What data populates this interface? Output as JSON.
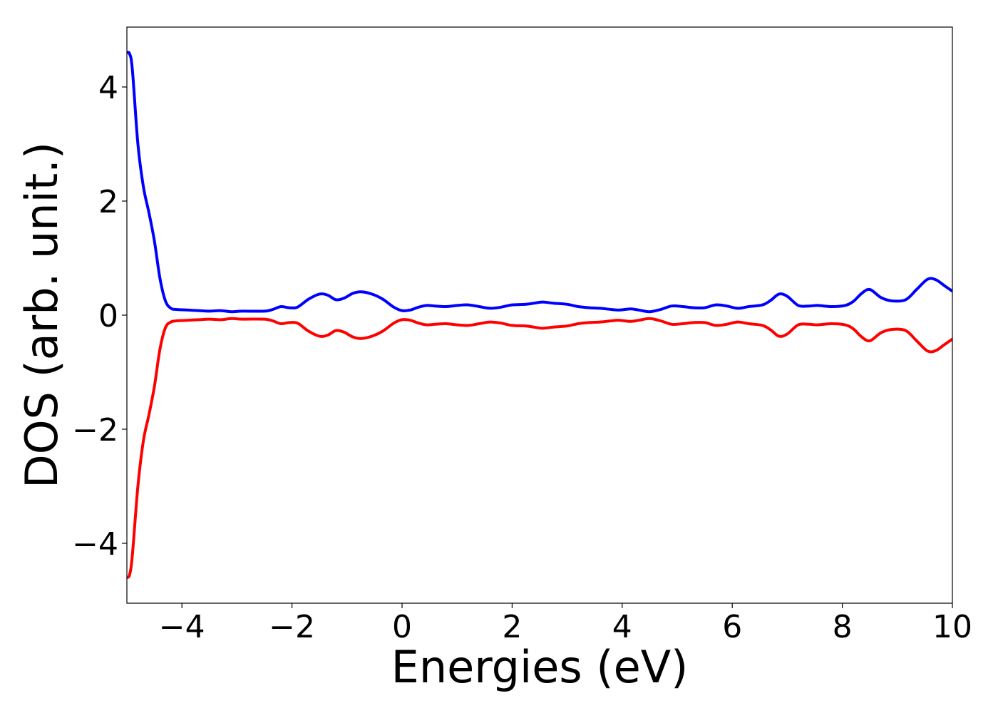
{
  "chart_data": {
    "type": "line",
    "title": "",
    "xlabel": "Energies (eV)",
    "ylabel": "DOS (arb. unit.)",
    "xlim": [
      -5,
      10
    ],
    "ylim": [
      -5.05,
      5.05
    ],
    "grid": false,
    "legend": "none",
    "x_ticks": [
      {
        "value": -4,
        "label": "−4"
      },
      {
        "value": -2,
        "label": "−2"
      },
      {
        "value": 0,
        "label": "0"
      },
      {
        "value": 2,
        "label": "2"
      },
      {
        "value": 4,
        "label": "4"
      },
      {
        "value": 6,
        "label": "6"
      },
      {
        "value": 8,
        "label": "8"
      },
      {
        "value": 10,
        "label": "10"
      }
    ],
    "y_ticks": [
      {
        "value": -4,
        "label": "−4"
      },
      {
        "value": -2,
        "label": "−2"
      },
      {
        "value": 0,
        "label": "0"
      },
      {
        "value": 2,
        "label": "2"
      },
      {
        "value": 4,
        "label": "4"
      }
    ],
    "series": [
      {
        "color": "#0000ff",
        "points": [
          [
            -5.0,
            4.6
          ],
          [
            -4.95,
            4.58
          ],
          [
            -4.9,
            4.3
          ],
          [
            -4.8,
            3.0
          ],
          [
            -4.7,
            2.25
          ],
          [
            -4.6,
            1.8
          ],
          [
            -4.5,
            1.3
          ],
          [
            -4.4,
            0.65
          ],
          [
            -4.3,
            0.25
          ],
          [
            -4.2,
            0.12
          ],
          [
            -4.1,
            0.1
          ],
          [
            -3.9,
            0.09
          ],
          [
            -3.7,
            0.08
          ],
          [
            -3.5,
            0.07
          ],
          [
            -3.3,
            0.08
          ],
          [
            -3.1,
            0.06
          ],
          [
            -2.9,
            0.07
          ],
          [
            -2.5,
            0.07
          ],
          [
            -2.35,
            0.1
          ],
          [
            -2.2,
            0.15
          ],
          [
            -2.05,
            0.13
          ],
          [
            -1.9,
            0.14
          ],
          [
            -1.7,
            0.28
          ],
          [
            -1.5,
            0.37
          ],
          [
            -1.35,
            0.35
          ],
          [
            -1.2,
            0.27
          ],
          [
            -1.05,
            0.3
          ],
          [
            -0.9,
            0.38
          ],
          [
            -0.75,
            0.41
          ],
          [
            -0.55,
            0.37
          ],
          [
            -0.35,
            0.28
          ],
          [
            -0.15,
            0.14
          ],
          [
            0.0,
            0.08
          ],
          [
            0.15,
            0.09
          ],
          [
            0.3,
            0.14
          ],
          [
            0.45,
            0.17
          ],
          [
            0.6,
            0.16
          ],
          [
            0.8,
            0.15
          ],
          [
            1.0,
            0.17
          ],
          [
            1.2,
            0.18
          ],
          [
            1.4,
            0.15
          ],
          [
            1.6,
            0.12
          ],
          [
            1.8,
            0.14
          ],
          [
            2.0,
            0.18
          ],
          [
            2.25,
            0.19
          ],
          [
            2.4,
            0.21
          ],
          [
            2.55,
            0.23
          ],
          [
            2.75,
            0.21
          ],
          [
            3.0,
            0.19
          ],
          [
            3.2,
            0.15
          ],
          [
            3.4,
            0.13
          ],
          [
            3.6,
            0.12
          ],
          [
            3.8,
            0.1
          ],
          [
            3.95,
            0.09
          ],
          [
            4.15,
            0.11
          ],
          [
            4.3,
            0.09
          ],
          [
            4.5,
            0.06
          ],
          [
            4.7,
            0.1
          ],
          [
            4.9,
            0.16
          ],
          [
            5.1,
            0.15
          ],
          [
            5.3,
            0.13
          ],
          [
            5.5,
            0.13
          ],
          [
            5.7,
            0.18
          ],
          [
            5.9,
            0.16
          ],
          [
            6.1,
            0.12
          ],
          [
            6.3,
            0.15
          ],
          [
            6.55,
            0.18
          ],
          [
            6.7,
            0.26
          ],
          [
            6.85,
            0.37
          ],
          [
            7.0,
            0.33
          ],
          [
            7.2,
            0.17
          ],
          [
            7.4,
            0.16
          ],
          [
            7.55,
            0.17
          ],
          [
            7.8,
            0.15
          ],
          [
            8.05,
            0.17
          ],
          [
            8.2,
            0.24
          ],
          [
            8.35,
            0.38
          ],
          [
            8.5,
            0.45
          ],
          [
            8.7,
            0.31
          ],
          [
            8.9,
            0.25
          ],
          [
            9.15,
            0.27
          ],
          [
            9.35,
            0.45
          ],
          [
            9.55,
            0.63
          ],
          [
            9.7,
            0.62
          ],
          [
            9.85,
            0.52
          ],
          [
            10.0,
            0.42
          ]
        ]
      },
      {
        "color": "#ff0000",
        "points": [
          [
            -5.0,
            -4.6
          ],
          [
            -4.95,
            -4.55
          ],
          [
            -4.9,
            -4.2
          ],
          [
            -4.8,
            -3.0
          ],
          [
            -4.7,
            -2.2
          ],
          [
            -4.6,
            -1.75
          ],
          [
            -4.5,
            -1.25
          ],
          [
            -4.4,
            -0.6
          ],
          [
            -4.3,
            -0.22
          ],
          [
            -4.2,
            -0.12
          ],
          [
            -4.1,
            -0.1
          ],
          [
            -3.9,
            -0.09
          ],
          [
            -3.7,
            -0.08
          ],
          [
            -3.5,
            -0.07
          ],
          [
            -3.3,
            -0.08
          ],
          [
            -3.1,
            -0.06
          ],
          [
            -2.9,
            -0.07
          ],
          [
            -2.5,
            -0.07
          ],
          [
            -2.35,
            -0.1
          ],
          [
            -2.2,
            -0.15
          ],
          [
            -2.05,
            -0.13
          ],
          [
            -1.9,
            -0.14
          ],
          [
            -1.7,
            -0.28
          ],
          [
            -1.5,
            -0.37
          ],
          [
            -1.35,
            -0.35
          ],
          [
            -1.2,
            -0.27
          ],
          [
            -1.05,
            -0.3
          ],
          [
            -0.9,
            -0.38
          ],
          [
            -0.75,
            -0.41
          ],
          [
            -0.55,
            -0.37
          ],
          [
            -0.35,
            -0.28
          ],
          [
            -0.15,
            -0.14
          ],
          [
            0.0,
            -0.08
          ],
          [
            0.15,
            -0.09
          ],
          [
            0.3,
            -0.14
          ],
          [
            0.45,
            -0.17
          ],
          [
            0.6,
            -0.16
          ],
          [
            0.8,
            -0.15
          ],
          [
            1.0,
            -0.17
          ],
          [
            1.2,
            -0.18
          ],
          [
            1.4,
            -0.15
          ],
          [
            1.6,
            -0.12
          ],
          [
            1.8,
            -0.14
          ],
          [
            2.0,
            -0.18
          ],
          [
            2.25,
            -0.19
          ],
          [
            2.4,
            -0.21
          ],
          [
            2.55,
            -0.23
          ],
          [
            2.75,
            -0.21
          ],
          [
            3.0,
            -0.19
          ],
          [
            3.2,
            -0.15
          ],
          [
            3.4,
            -0.13
          ],
          [
            3.6,
            -0.12
          ],
          [
            3.8,
            -0.1
          ],
          [
            3.95,
            -0.09
          ],
          [
            4.15,
            -0.11
          ],
          [
            4.3,
            -0.09
          ],
          [
            4.5,
            -0.06
          ],
          [
            4.7,
            -0.1
          ],
          [
            4.9,
            -0.16
          ],
          [
            5.1,
            -0.15
          ],
          [
            5.3,
            -0.13
          ],
          [
            5.5,
            -0.13
          ],
          [
            5.7,
            -0.18
          ],
          [
            5.9,
            -0.16
          ],
          [
            6.1,
            -0.12
          ],
          [
            6.3,
            -0.15
          ],
          [
            6.55,
            -0.18
          ],
          [
            6.7,
            -0.26
          ],
          [
            6.85,
            -0.37
          ],
          [
            7.0,
            -0.33
          ],
          [
            7.2,
            -0.17
          ],
          [
            7.4,
            -0.16
          ],
          [
            7.55,
            -0.17
          ],
          [
            7.8,
            -0.15
          ],
          [
            8.05,
            -0.17
          ],
          [
            8.2,
            -0.24
          ],
          [
            8.35,
            -0.38
          ],
          [
            8.5,
            -0.45
          ],
          [
            8.7,
            -0.31
          ],
          [
            8.9,
            -0.25
          ],
          [
            9.15,
            -0.27
          ],
          [
            9.35,
            -0.45
          ],
          [
            9.55,
            -0.63
          ],
          [
            9.7,
            -0.62
          ],
          [
            9.85,
            -0.52
          ],
          [
            10.0,
            -0.42
          ]
        ]
      }
    ]
  }
}
